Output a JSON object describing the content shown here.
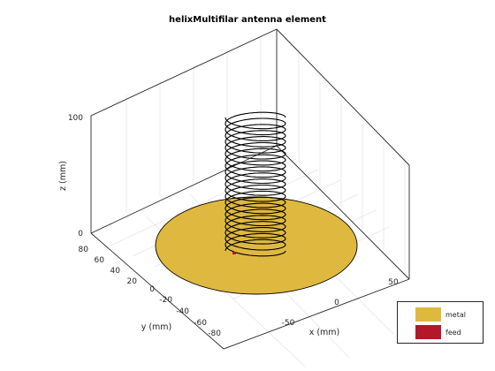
{
  "chart_data": {
    "type": "3d-antenna",
    "title": "helixMultifilar antenna element",
    "xlabel": "x (mm)",
    "ylabel": "y (mm)",
    "zlabel": "z (mm)",
    "x_ticks": [
      "-50",
      "0",
      "50"
    ],
    "y_ticks": [
      "80",
      "60",
      "40",
      "20",
      "0",
      "-20",
      "-40",
      "-60",
      "-80"
    ],
    "z_ticks": [
      "0",
      "100"
    ],
    "legend": [
      {
        "label": "metal",
        "color": "#dfb93f"
      },
      {
        "label": "feed",
        "color": "#b3172a"
      }
    ]
  },
  "colors": {
    "metal": "#dfb93f",
    "feed": "#b3172a",
    "wire": "#000000",
    "grid": "#e6e6e6",
    "axis": "#262626"
  }
}
